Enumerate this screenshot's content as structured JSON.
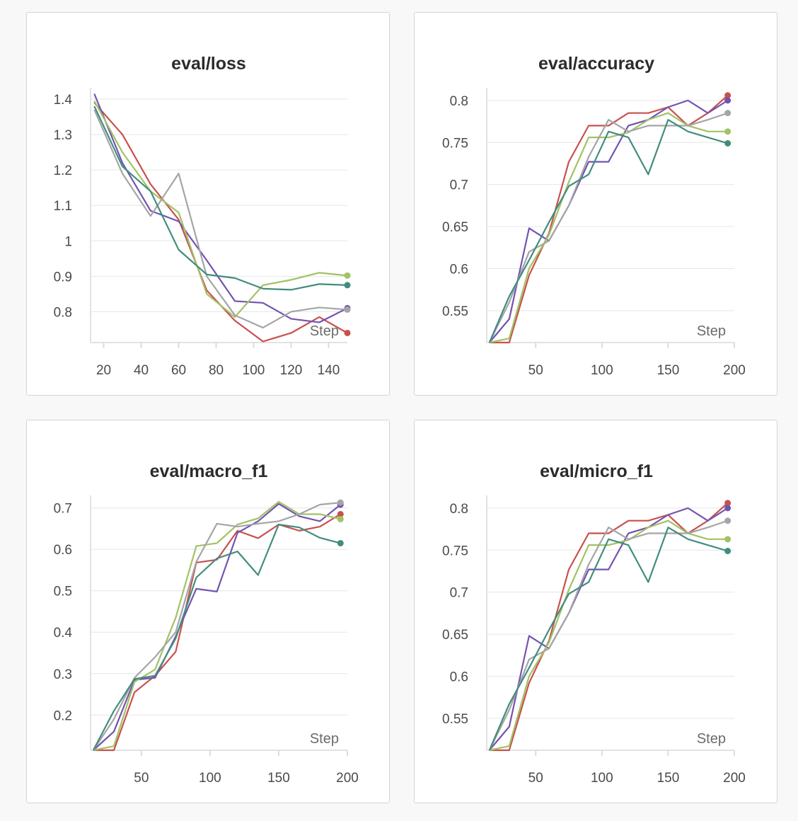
{
  "chart_data": [
    {
      "type": "line",
      "title": "eval/loss",
      "xlabel": "Step",
      "ylabel": "",
      "xlim": [
        13,
        150
      ],
      "ylim": [
        0.713,
        1.42
      ],
      "xticks": [
        20,
        40,
        60,
        80,
        100,
        120,
        140
      ],
      "yticks": [
        0.8,
        0.9,
        1,
        1.1,
        1.2,
        1.3,
        1.4
      ],
      "ytick_labels": [
        "0.8",
        "0.9",
        "1",
        "1.1",
        "1.2",
        "1.3",
        "1.4"
      ],
      "series": [
        {
          "color": "#c8514e",
          "x": [
            15,
            30,
            45,
            60,
            75,
            90,
            105,
            120,
            135,
            150
          ],
          "y": [
            1.39,
            1.3,
            1.16,
            1.06,
            0.86,
            0.775,
            0.716,
            0.74,
            0.785,
            0.74
          ]
        },
        {
          "color": "#7353b0",
          "x": [
            15,
            30,
            45,
            60,
            75,
            90,
            105,
            120,
            135,
            150
          ],
          "y": [
            1.415,
            1.22,
            1.085,
            1.055,
            0.945,
            0.83,
            0.825,
            0.78,
            0.77,
            0.81
          ]
        },
        {
          "color": "#a2c265",
          "x": [
            15,
            30,
            45,
            60,
            75,
            90,
            105,
            120,
            135,
            150
          ],
          "y": [
            1.395,
            1.25,
            1.14,
            1.08,
            0.85,
            0.785,
            0.875,
            0.89,
            0.91,
            0.902
          ]
        },
        {
          "color": "#a3a5a7",
          "x": [
            15,
            30,
            45,
            60,
            75,
            90,
            105,
            120,
            135,
            150
          ],
          "y": [
            1.37,
            1.19,
            1.07,
            1.19,
            0.9,
            0.79,
            0.755,
            0.8,
            0.812,
            0.806
          ]
        },
        {
          "color": "#428c7e",
          "x": [
            15,
            30,
            45,
            60,
            75,
            90,
            105,
            120,
            135,
            150
          ],
          "y": [
            1.38,
            1.21,
            1.14,
            0.975,
            0.905,
            0.895,
            0.865,
            0.862,
            0.878,
            0.875
          ]
        }
      ]
    },
    {
      "type": "line",
      "title": "eval/accuracy",
      "xlabel": "Step",
      "ylabel": "",
      "xlim": [
        13,
        200
      ],
      "ylim": [
        0.512,
        0.81
      ],
      "xticks": [
        50,
        100,
        150,
        200
      ],
      "yticks": [
        0.55,
        0.6,
        0.65,
        0.7,
        0.75,
        0.8
      ],
      "ytick_labels": [
        "0.55",
        "0.6",
        "0.65",
        "0.7",
        "0.75",
        "0.8"
      ],
      "series": [
        {
          "color": "#c8514e",
          "x": [
            15,
            30,
            45,
            60,
            75,
            90,
            105,
            120,
            135,
            150,
            165,
            180,
            195
          ],
          "y": [
            0.512,
            0.512,
            0.592,
            0.642,
            0.727,
            0.77,
            0.77,
            0.785,
            0.785,
            0.792,
            0.77,
            0.785,
            0.806
          ]
        },
        {
          "color": "#7353b0",
          "x": [
            15,
            30,
            45,
            60,
            75,
            90,
            105,
            120,
            135,
            150,
            165,
            180,
            195
          ],
          "y": [
            0.512,
            0.54,
            0.648,
            0.633,
            0.675,
            0.727,
            0.727,
            0.77,
            0.777,
            0.792,
            0.8,
            0.785,
            0.8
          ]
        },
        {
          "color": "#a2c265",
          "x": [
            15,
            30,
            45,
            60,
            75,
            90,
            105,
            120,
            135,
            150,
            165,
            180,
            195
          ],
          "y": [
            0.512,
            0.517,
            0.6,
            0.64,
            0.703,
            0.756,
            0.756,
            0.762,
            0.777,
            0.785,
            0.77,
            0.763,
            0.763
          ]
        },
        {
          "color": "#a3a5a7",
          "x": [
            15,
            30,
            45,
            60,
            75,
            90,
            105,
            120,
            135,
            150,
            165,
            180,
            195
          ],
          "y": [
            0.512,
            0.56,
            0.62,
            0.633,
            0.675,
            0.733,
            0.777,
            0.763,
            0.77,
            0.77,
            0.77,
            0.777,
            0.785
          ]
        },
        {
          "color": "#428c7e",
          "x": [
            15,
            30,
            45,
            60,
            75,
            90,
            105,
            120,
            135,
            150,
            165,
            180,
            195
          ],
          "y": [
            0.512,
            0.567,
            0.61,
            0.655,
            0.698,
            0.712,
            0.763,
            0.756,
            0.712,
            0.777,
            0.763,
            0.756,
            0.749
          ]
        }
      ]
    },
    {
      "type": "line",
      "title": "eval/macro_f1",
      "xlabel": "Step",
      "ylabel": "",
      "xlim": [
        13,
        200
      ],
      "ylim": [
        0.115,
        0.72
      ],
      "xticks": [
        50,
        100,
        150,
        200
      ],
      "yticks": [
        0.2,
        0.3,
        0.4,
        0.5,
        0.6,
        0.7
      ],
      "ytick_labels": [
        "0.2",
        "0.3",
        "0.4",
        "0.5",
        "0.6",
        "0.7"
      ],
      "series": [
        {
          "color": "#c8514e",
          "x": [
            15,
            30,
            45,
            60,
            75,
            90,
            105,
            120,
            135,
            150,
            165,
            180,
            195
          ],
          "y": [
            0.115,
            0.115,
            0.255,
            0.295,
            0.353,
            0.568,
            0.575,
            0.645,
            0.627,
            0.66,
            0.645,
            0.655,
            0.685
          ]
        },
        {
          "color": "#7353b0",
          "x": [
            15,
            30,
            45,
            60,
            75,
            90,
            105,
            120,
            135,
            150,
            165,
            180,
            195
          ],
          "y": [
            0.115,
            0.16,
            0.285,
            0.29,
            0.39,
            0.505,
            0.498,
            0.64,
            0.668,
            0.71,
            0.68,
            0.668,
            0.708
          ]
        },
        {
          "color": "#a2c265",
          "x": [
            15,
            30,
            45,
            60,
            75,
            90,
            105,
            120,
            135,
            150,
            165,
            180,
            195
          ],
          "y": [
            0.115,
            0.125,
            0.28,
            0.31,
            0.435,
            0.608,
            0.615,
            0.66,
            0.675,
            0.715,
            0.685,
            0.685,
            0.673
          ]
        },
        {
          "color": "#a3a5a7",
          "x": [
            15,
            30,
            45,
            60,
            75,
            90,
            105,
            120,
            135,
            150,
            165,
            180,
            195
          ],
          "y": [
            0.115,
            0.19,
            0.29,
            0.34,
            0.4,
            0.57,
            0.662,
            0.655,
            0.662,
            0.668,
            0.685,
            0.708,
            0.713
          ]
        },
        {
          "color": "#428c7e",
          "x": [
            15,
            30,
            45,
            60,
            75,
            90,
            105,
            120,
            135,
            150,
            165,
            180,
            195
          ],
          "y": [
            0.115,
            0.21,
            0.287,
            0.295,
            0.385,
            0.532,
            0.578,
            0.595,
            0.538,
            0.66,
            0.653,
            0.628,
            0.615
          ]
        }
      ]
    },
    {
      "type": "line",
      "title": "eval/micro_f1",
      "xlabel": "Step",
      "ylabel": "",
      "xlim": [
        13,
        200
      ],
      "ylim": [
        0.512,
        0.81
      ],
      "xticks": [
        50,
        100,
        150,
        200
      ],
      "yticks": [
        0.55,
        0.6,
        0.65,
        0.7,
        0.75,
        0.8
      ],
      "ytick_labels": [
        "0.55",
        "0.6",
        "0.65",
        "0.7",
        "0.75",
        "0.8"
      ],
      "series": [
        {
          "color": "#c8514e",
          "x": [
            15,
            30,
            45,
            60,
            75,
            90,
            105,
            120,
            135,
            150,
            165,
            180,
            195
          ],
          "y": [
            0.512,
            0.512,
            0.592,
            0.642,
            0.727,
            0.77,
            0.77,
            0.785,
            0.785,
            0.792,
            0.77,
            0.785,
            0.806
          ]
        },
        {
          "color": "#7353b0",
          "x": [
            15,
            30,
            45,
            60,
            75,
            90,
            105,
            120,
            135,
            150,
            165,
            180,
            195
          ],
          "y": [
            0.512,
            0.54,
            0.648,
            0.633,
            0.675,
            0.727,
            0.727,
            0.77,
            0.777,
            0.792,
            0.8,
            0.785,
            0.8
          ]
        },
        {
          "color": "#a2c265",
          "x": [
            15,
            30,
            45,
            60,
            75,
            90,
            105,
            120,
            135,
            150,
            165,
            180,
            195
          ],
          "y": [
            0.512,
            0.517,
            0.6,
            0.64,
            0.703,
            0.756,
            0.756,
            0.762,
            0.777,
            0.785,
            0.77,
            0.763,
            0.763
          ]
        },
        {
          "color": "#a3a5a7",
          "x": [
            15,
            30,
            45,
            60,
            75,
            90,
            105,
            120,
            135,
            150,
            165,
            180,
            195
          ],
          "y": [
            0.512,
            0.56,
            0.62,
            0.633,
            0.675,
            0.733,
            0.777,
            0.763,
            0.77,
            0.77,
            0.77,
            0.777,
            0.785
          ]
        },
        {
          "color": "#428c7e",
          "x": [
            15,
            30,
            45,
            60,
            75,
            90,
            105,
            120,
            135,
            150,
            165,
            180,
            195
          ],
          "y": [
            0.512,
            0.567,
            0.61,
            0.655,
            0.698,
            0.712,
            0.763,
            0.756,
            0.712,
            0.777,
            0.763,
            0.756,
            0.749
          ]
        }
      ]
    }
  ]
}
